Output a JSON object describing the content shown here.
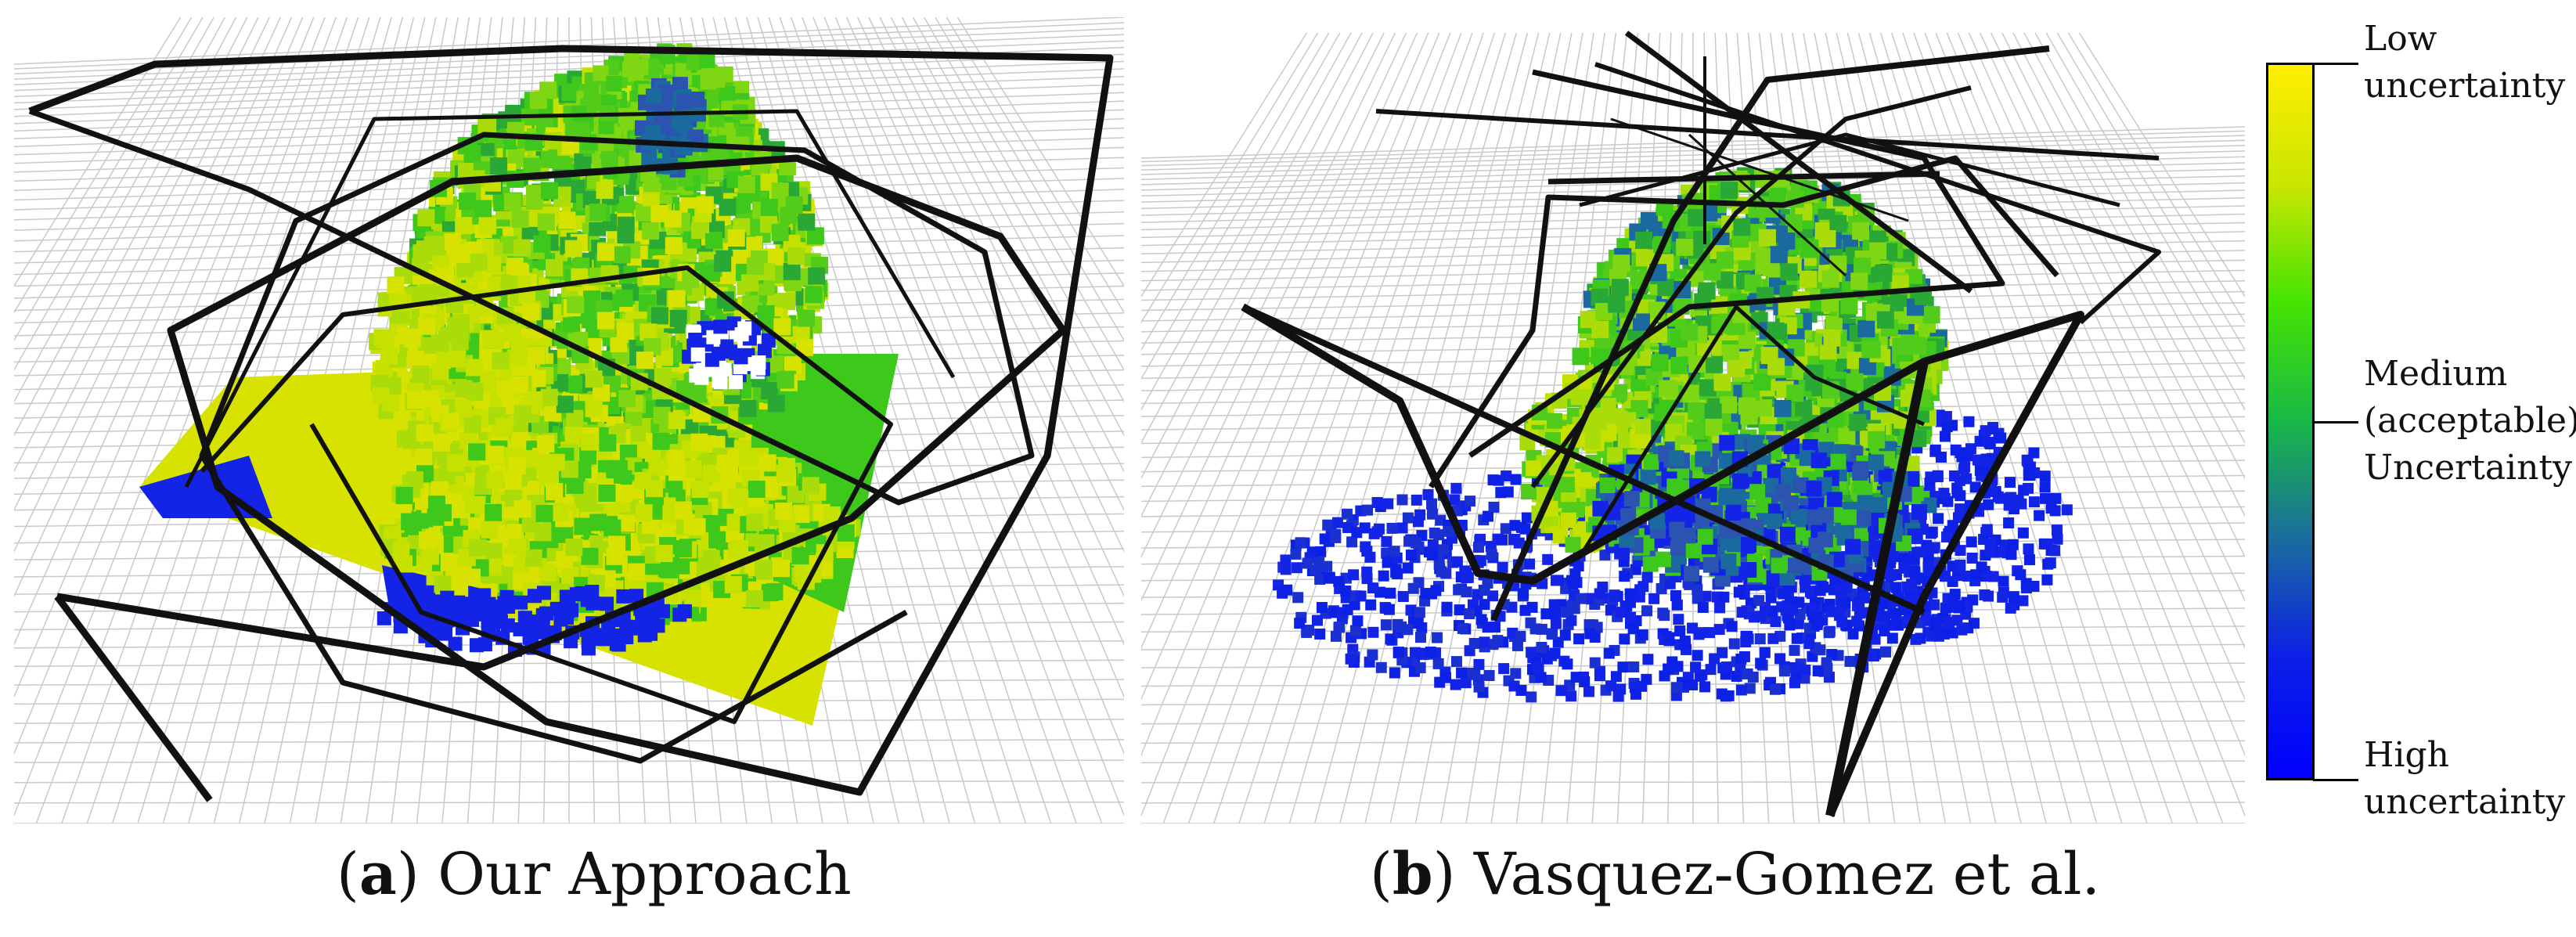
{
  "panels": [
    {
      "id": "a",
      "caption_letter": "a",
      "caption_text": "Our Approach"
    },
    {
      "id": "b",
      "caption_letter": "b",
      "caption_text": "Vasquez-Gomez et al."
    }
  ],
  "colorbar": {
    "gradient": [
      "#ffee00",
      "#c8e600",
      "#46e400",
      "#19b848",
      "#1a6aa0",
      "#0c20e6",
      "#0000ff"
    ],
    "labels": [
      {
        "line1": "Low",
        "line2": "uncertainty"
      },
      {
        "line1": "Medium",
        "line2": "(acceptable)",
        "line3": "Uncertainty"
      },
      {
        "line1": "High",
        "line2": "uncertainty"
      }
    ]
  },
  "colors": {
    "grid": "#c9c9c9",
    "path": "#111111",
    "blue_voxel": "#1424e6",
    "yellow_voxel": "#d8e200",
    "green_voxel": "#3ec81c"
  }
}
